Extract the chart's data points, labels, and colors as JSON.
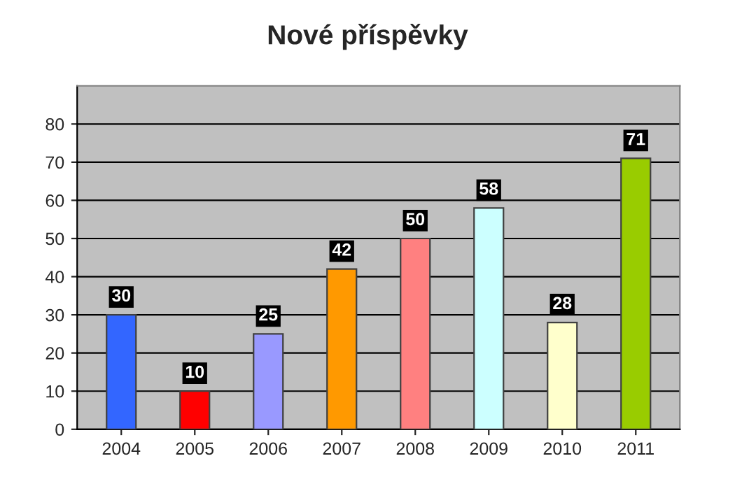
{
  "chart_data": {
    "type": "bar",
    "title": "Nové příspěvky",
    "categories": [
      "2004",
      "2005",
      "2006",
      "2007",
      "2008",
      "2009",
      "2010",
      "2011"
    ],
    "values": [
      30,
      10,
      25,
      42,
      50,
      58,
      28,
      71
    ],
    "colors": [
      "#3366ff",
      "#ff0000",
      "#9999ff",
      "#ff9900",
      "#ff8080",
      "#ccffff",
      "#ffffcc",
      "#99cc00"
    ],
    "ylim": [
      0,
      90
    ],
    "yticks": [
      0,
      10,
      20,
      30,
      40,
      50,
      60,
      70,
      80
    ],
    "grid": "y",
    "data_labels": true
  }
}
